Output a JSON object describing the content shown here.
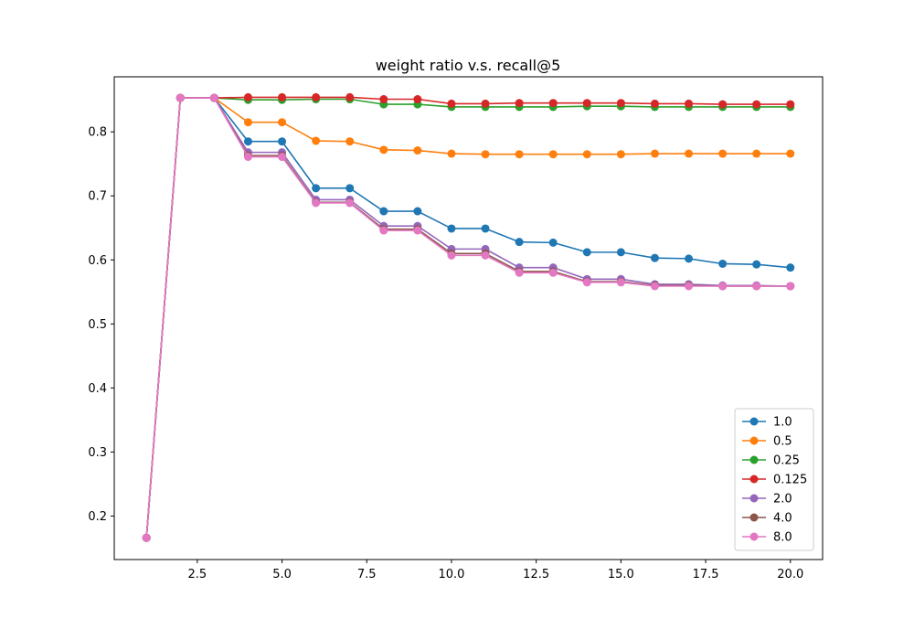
{
  "chart_data": {
    "type": "line",
    "title": "weight ratio v.s. recall@5",
    "xlabel": "",
    "ylabel": "",
    "xlim": [
      0.05,
      20.95
    ],
    "ylim": [
      0.132,
      0.886
    ],
    "xticks": [
      2.5,
      5.0,
      7.5,
      10.0,
      12.5,
      15.0,
      17.5,
      20.0
    ],
    "xtick_labels": [
      "2.5",
      "5.0",
      "7.5",
      "10.0",
      "12.5",
      "15.0",
      "17.5",
      "20.0"
    ],
    "yticks": [
      0.2,
      0.3,
      0.4,
      0.5,
      0.6,
      0.7,
      0.8
    ],
    "ytick_labels": [
      "0.2",
      "0.3",
      "0.4",
      "0.5",
      "0.6",
      "0.7",
      "0.8"
    ],
    "grid": false,
    "legend_position": "lower-right",
    "x": [
      1,
      2,
      3,
      4,
      5,
      6,
      7,
      8,
      9,
      10,
      11,
      12,
      13,
      14,
      15,
      16,
      17,
      18,
      19,
      20
    ],
    "series": [
      {
        "name": "1.0",
        "color": "#1f77b4",
        "values": [
          0.166,
          0.853,
          0.853,
          0.785,
          0.785,
          0.712,
          0.712,
          0.676,
          0.676,
          0.649,
          0.649,
          0.628,
          0.627,
          0.612,
          0.612,
          0.603,
          0.602,
          0.594,
          0.593,
          0.588
        ]
      },
      {
        "name": "0.5",
        "color": "#ff7f0e",
        "values": [
          0.166,
          0.853,
          0.853,
          0.815,
          0.815,
          0.786,
          0.785,
          0.772,
          0.771,
          0.766,
          0.765,
          0.765,
          0.765,
          0.765,
          0.765,
          0.766,
          0.766,
          0.766,
          0.766,
          0.766
        ]
      },
      {
        "name": "0.25",
        "color": "#2ca02c",
        "values": [
          0.166,
          0.853,
          0.853,
          0.85,
          0.85,
          0.851,
          0.851,
          0.843,
          0.843,
          0.839,
          0.839,
          0.839,
          0.839,
          0.84,
          0.84,
          0.839,
          0.839,
          0.839,
          0.839,
          0.839
        ]
      },
      {
        "name": "0.125",
        "color": "#d62728",
        "values": [
          0.166,
          0.853,
          0.853,
          0.854,
          0.854,
          0.854,
          0.854,
          0.851,
          0.851,
          0.844,
          0.844,
          0.845,
          0.845,
          0.845,
          0.845,
          0.844,
          0.844,
          0.843,
          0.843,
          0.843
        ]
      },
      {
        "name": "2.0",
        "color": "#9467bd",
        "values": [
          0.166,
          0.853,
          0.853,
          0.768,
          0.768,
          0.694,
          0.694,
          0.653,
          0.653,
          0.617,
          0.617,
          0.588,
          0.588,
          0.57,
          0.57,
          0.562,
          0.562,
          0.56,
          0.56,
          0.559
        ]
      },
      {
        "name": "4.0",
        "color": "#8c564b",
        "values": [
          0.166,
          0.853,
          0.853,
          0.763,
          0.763,
          0.69,
          0.69,
          0.648,
          0.648,
          0.61,
          0.61,
          0.582,
          0.582,
          0.566,
          0.566,
          0.56,
          0.56,
          0.559,
          0.559,
          0.559
        ]
      },
      {
        "name": "8.0",
        "color": "#e377c2",
        "values": [
          0.166,
          0.853,
          0.853,
          0.761,
          0.761,
          0.689,
          0.689,
          0.646,
          0.646,
          0.607,
          0.607,
          0.58,
          0.58,
          0.565,
          0.565,
          0.559,
          0.559,
          0.559,
          0.559,
          0.559
        ]
      }
    ]
  }
}
